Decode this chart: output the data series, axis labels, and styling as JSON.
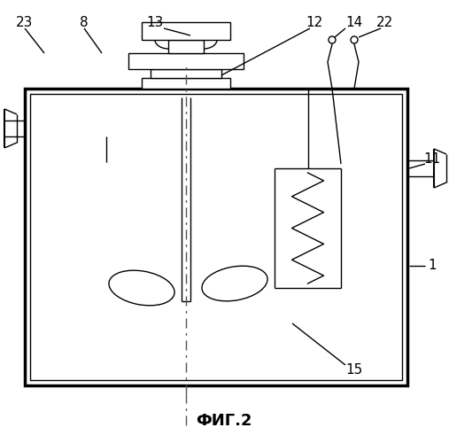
{
  "background": "#ffffff",
  "line_color": "#000000",
  "fig_label": "ФИГ.2"
}
